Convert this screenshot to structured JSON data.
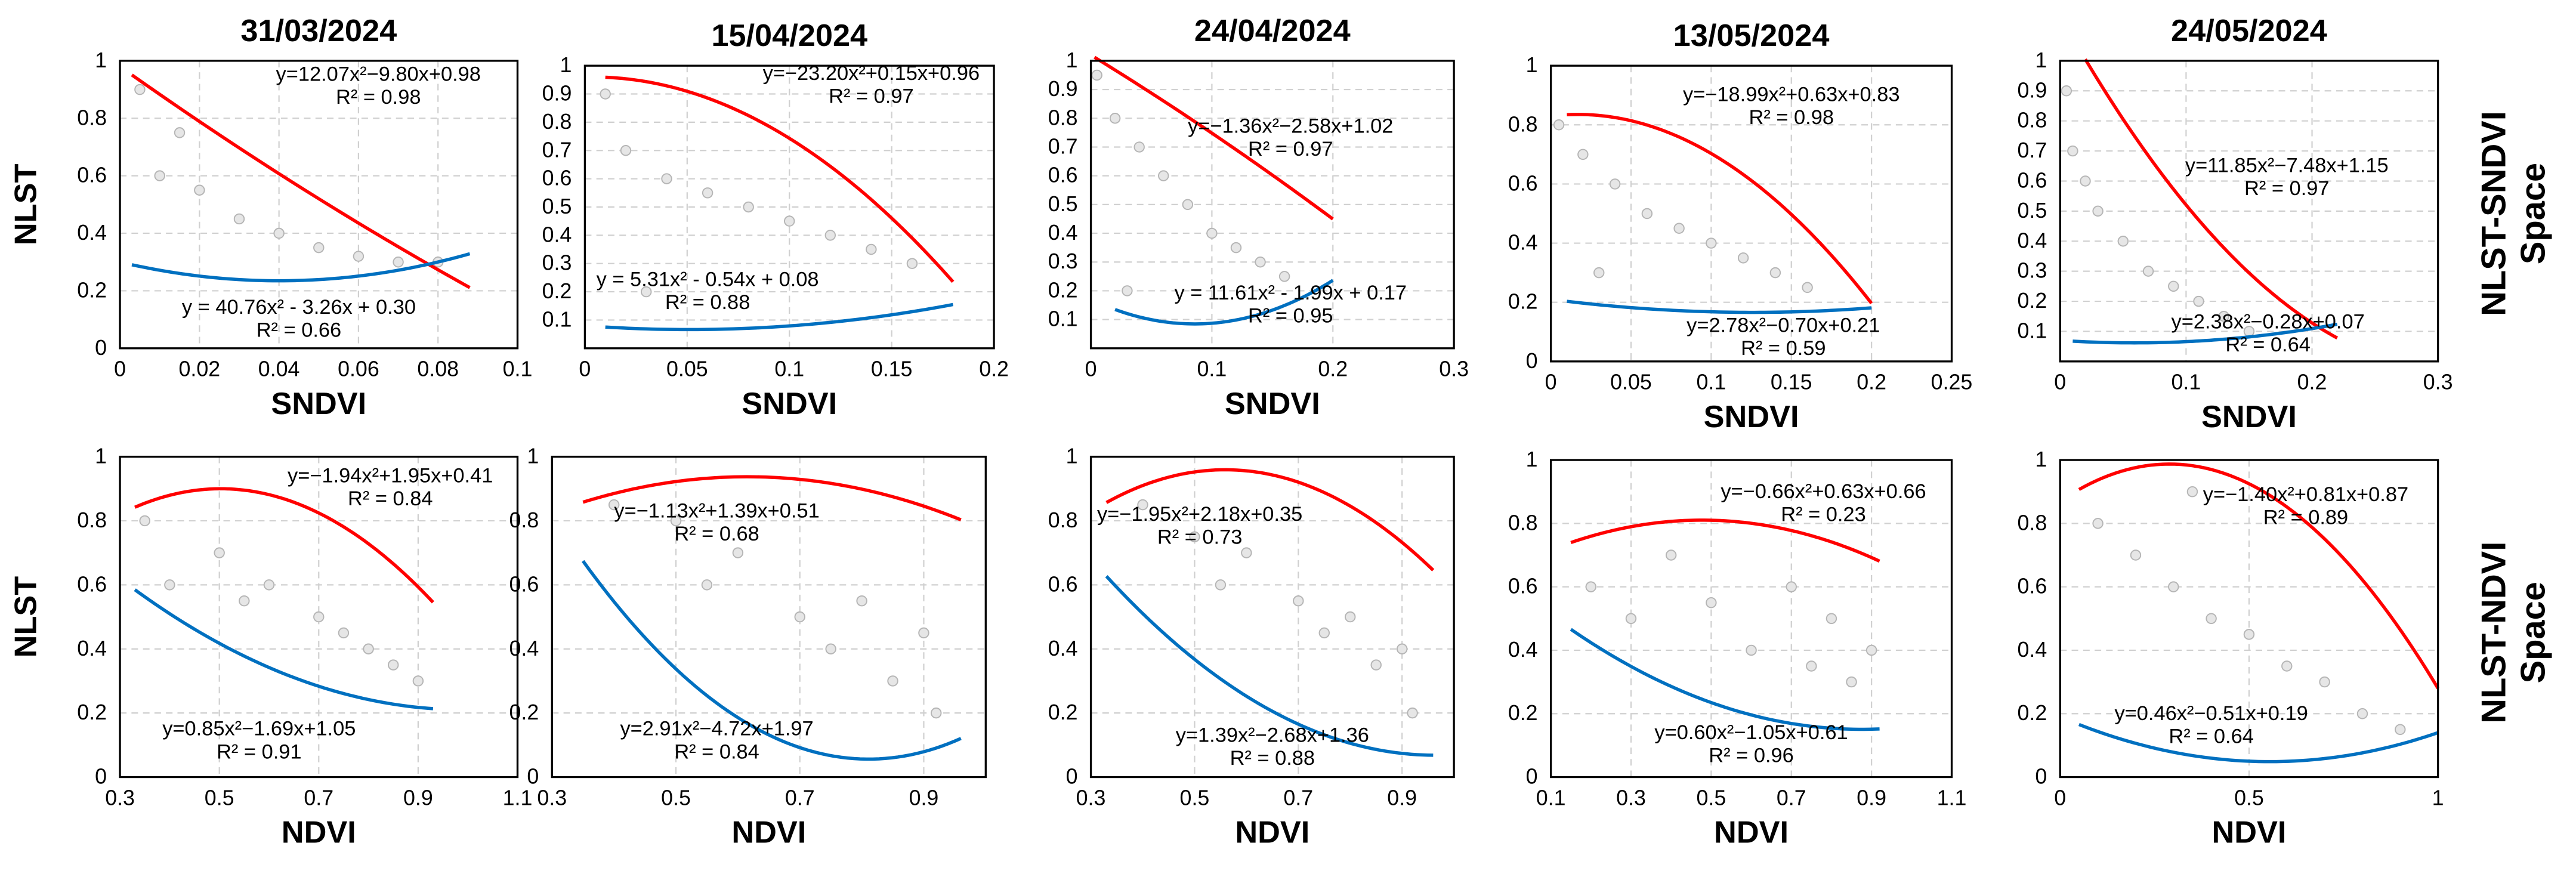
{
  "row_labels": [
    [
      "NLST-SNDVI",
      "Space"
    ],
    [
      "NLST-NDVI",
      "Space"
    ]
  ],
  "chart_data": [
    {
      "type": "scatter",
      "title": "31/03/2024",
      "xlabel": "SNDVI",
      "ylabel": "NLST",
      "xlim": [
        0,
        0.1
      ],
      "ylim": [
        0,
        1
      ],
      "xticks": [
        0,
        0.02,
        0.04,
        0.06,
        0.08,
        0.1
      ],
      "yticks": [
        0,
        0.2,
        0.4,
        0.6,
        0.8,
        1
      ],
      "grid": true,
      "x": [
        0.005,
        0.01,
        0.02,
        0.03,
        0.04,
        0.05,
        0.06,
        0.07,
        0.08,
        0.015
      ],
      "y": [
        0.9,
        0.6,
        0.55,
        0.45,
        0.4,
        0.35,
        0.32,
        0.3,
        0.3,
        0.75
      ],
      "fits": [
        {
          "color": "#ff0000",
          "coefficients": [
            12.07,
            -9.8,
            0.98
          ],
          "xrange": [
            0.003,
            0.088
          ],
          "equation": "y=12.07x²−9.80x+0.98",
          "r2": "R² = 0.98"
        },
        {
          "color": "#0070c0",
          "coefficients": [
            40.76,
            -3.26,
            0.3
          ],
          "xrange": [
            0.003,
            0.088
          ],
          "equation": "y = 40.76x² - 3.26x + 0.30",
          "r2": "R² = 0.66"
        }
      ]
    },
    {
      "type": "scatter",
      "title": "15/04/2024",
      "xlabel": "SNDVI",
      "xlim": [
        0,
        0.2
      ],
      "ylim": [
        0,
        1
      ],
      "xticks": [
        0,
        0.05,
        0.1,
        0.15,
        0.2
      ],
      "yticks": [
        0.1,
        0.2,
        0.3,
        0.4,
        0.5,
        0.6,
        0.7,
        0.8,
        0.9,
        1
      ],
      "grid": true,
      "x": [
        0.01,
        0.02,
        0.04,
        0.06,
        0.08,
        0.1,
        0.12,
        0.14,
        0.16,
        0.03
      ],
      "y": [
        0.9,
        0.7,
        0.6,
        0.55,
        0.5,
        0.45,
        0.4,
        0.35,
        0.3,
        0.2
      ],
      "fits": [
        {
          "color": "#ff0000",
          "coefficients": [
            -23.2,
            0.15,
            0.96
          ],
          "xrange": [
            0.01,
            0.18
          ],
          "equation": "y=−23.20x²+0.15x+0.96",
          "r2": "R² = 0.97"
        },
        {
          "color": "#0070c0",
          "coefficients": [
            5.31,
            -0.54,
            0.08
          ],
          "xrange": [
            0.01,
            0.18
          ],
          "equation": "y = 5.31x² - 0.54x + 0.08",
          "r2": "R² = 0.88"
        }
      ]
    },
    {
      "type": "scatter",
      "title": "24/04/2024",
      "xlabel": "SNDVI",
      "xlim": [
        0,
        0.3
      ],
      "ylim": [
        0,
        1
      ],
      "xticks": [
        0,
        0.1,
        0.2,
        0.3
      ],
      "yticks": [
        0.1,
        0.2,
        0.3,
        0.4,
        0.5,
        0.6,
        0.7,
        0.8,
        0.9,
        1
      ],
      "grid": true,
      "x": [
        0.005,
        0.02,
        0.04,
        0.06,
        0.08,
        0.1,
        0.12,
        0.14,
        0.16,
        0.03
      ],
      "y": [
        0.95,
        0.8,
        0.7,
        0.6,
        0.5,
        0.4,
        0.35,
        0.3,
        0.25,
        0.2
      ],
      "fits": [
        {
          "color": "#ff0000",
          "coefficients": [
            -1.36,
            -2.58,
            1.02
          ],
          "xrange": [
            0.003,
            0.2
          ],
          "equation": "y=−1.36x²−2.58x+1.02",
          "r2": "R² = 0.97"
        },
        {
          "color": "#0070c0",
          "coefficients": [
            11.61,
            -1.99,
            0.17
          ],
          "xrange": [
            0.02,
            0.2
          ],
          "equation": "y = 11.61x² - 1.99x + 0.17",
          "r2": "R² = 0.95"
        }
      ]
    },
    {
      "type": "scatter",
      "title": "13/05/2024",
      "xlabel": "SNDVI",
      "xlim": [
        0,
        0.25
      ],
      "ylim": [
        0,
        1
      ],
      "xticks": [
        0,
        0.05,
        0.1,
        0.15,
        0.2,
        0.25
      ],
      "yticks": [
        0,
        0.2,
        0.4,
        0.6,
        0.8,
        1
      ],
      "grid": true,
      "x": [
        0.005,
        0.02,
        0.04,
        0.06,
        0.08,
        0.1,
        0.12,
        0.14,
        0.16,
        0.03
      ],
      "y": [
        0.8,
        0.7,
        0.6,
        0.5,
        0.45,
        0.4,
        0.35,
        0.3,
        0.25,
        0.3
      ],
      "fits": [
        {
          "color": "#ff0000",
          "coefficients": [
            -18.99,
            0.63,
            0.83
          ],
          "xrange": [
            0.01,
            0.2
          ],
          "equation": "y=−18.99x²+0.63x+0.83",
          "r2": "R² = 0.98"
        },
        {
          "color": "#0070c0",
          "coefficients": [
            2.78,
            -0.7,
            0.21
          ],
          "xrange": [
            0.01,
            0.2
          ],
          "equation": "y=2.78x²−0.70x+0.21",
          "r2": "R² = 0.59"
        }
      ]
    },
    {
      "type": "scatter",
      "title": "24/05/2024",
      "xlabel": "SNDVI",
      "xlim": [
        0,
        0.3
      ],
      "ylim": [
        0,
        1
      ],
      "xticks": [
        0,
        0.1,
        0.2,
        0.3
      ],
      "yticks": [
        0.1,
        0.2,
        0.3,
        0.4,
        0.5,
        0.6,
        0.7,
        0.8,
        0.9,
        1
      ],
      "grid": true,
      "x": [
        0.005,
        0.01,
        0.02,
        0.03,
        0.05,
        0.07,
        0.09,
        0.11,
        0.13,
        0.15
      ],
      "y": [
        0.9,
        0.7,
        0.6,
        0.5,
        0.4,
        0.3,
        0.25,
        0.2,
        0.15,
        0.1
      ],
      "fits": [
        {
          "color": "#ff0000",
          "coefficients": [
            11.85,
            -7.48,
            1.15
          ],
          "xrange": [
            0.02,
            0.22
          ],
          "equation": "y=11.85x²−7.48x+1.15",
          "r2": "R² = 0.97"
        },
        {
          "color": "#0070c0",
          "coefficients": [
            2.38,
            -0.28,
            0.07
          ],
          "xrange": [
            0.01,
            0.22
          ],
          "equation": "y=2.38x²−0.28x+0.07",
          "r2": "R² = 0.64"
        }
      ]
    },
    {
      "type": "scatter",
      "xlabel": "NDVI",
      "ylabel": "NLST",
      "xlim": [
        0.3,
        1.1
      ],
      "ylim": [
        0,
        1
      ],
      "xticks": [
        0.3,
        0.5,
        0.7,
        0.9,
        1.1
      ],
      "yticks": [
        0,
        0.2,
        0.4,
        0.6,
        0.8,
        1
      ],
      "grid": true,
      "x": [
        0.35,
        0.4,
        0.5,
        0.55,
        0.6,
        0.7,
        0.75,
        0.8,
        0.85,
        0.9
      ],
      "y": [
        0.8,
        0.6,
        0.7,
        0.55,
        0.6,
        0.5,
        0.45,
        0.4,
        0.35,
        0.3
      ],
      "fits": [
        {
          "color": "#ff0000",
          "coefficients": [
            -1.94,
            1.95,
            0.41
          ],
          "xrange": [
            0.33,
            0.93
          ],
          "equation": "y=−1.94x²+1.95x+0.41",
          "r2": "R² = 0.84"
        },
        {
          "color": "#0070c0",
          "coefficients": [
            0.85,
            -1.69,
            1.05
          ],
          "xrange": [
            0.33,
            0.93
          ],
          "equation": "y=0.85x²−1.69x+1.05",
          "r2": "R² = 0.91"
        }
      ]
    },
    {
      "type": "scatter",
      "xlabel": "NDVI",
      "xlim": [
        0.3,
        1
      ],
      "ylim": [
        0,
        1
      ],
      "xticks": [
        0.3,
        0.5,
        0.7,
        0.9
      ],
      "yticks": [
        0,
        0.2,
        0.4,
        0.6,
        0.8,
        1
      ],
      "grid": true,
      "x": [
        0.4,
        0.5,
        0.55,
        0.6,
        0.7,
        0.75,
        0.8,
        0.85,
        0.9,
        0.92
      ],
      "y": [
        0.85,
        0.8,
        0.6,
        0.7,
        0.5,
        0.4,
        0.55,
        0.3,
        0.45,
        0.2
      ],
      "fits": [
        {
          "color": "#ff0000",
          "coefficients": [
            -1.13,
            1.39,
            0.51
          ],
          "xrange": [
            0.35,
            0.96
          ],
          "equation": "y=−1.13x²+1.39x+0.51",
          "r2": "R² = 0.68"
        },
        {
          "color": "#0070c0",
          "coefficients": [
            2.91,
            -4.72,
            1.97
          ],
          "xrange": [
            0.35,
            0.96
          ],
          "equation": "y=2.91x²−4.72x+1.97",
          "r2": "R² = 0.84"
        }
      ]
    },
    {
      "type": "scatter",
      "xlabel": "NDVI",
      "xlim": [
        0.3,
        1
      ],
      "ylim": [
        0,
        1
      ],
      "xticks": [
        0.3,
        0.5,
        0.7,
        0.9
      ],
      "yticks": [
        0,
        0.2,
        0.4,
        0.6,
        0.8,
        1
      ],
      "grid": true,
      "x": [
        0.4,
        0.5,
        0.55,
        0.6,
        0.7,
        0.75,
        0.8,
        0.85,
        0.9,
        0.92
      ],
      "y": [
        0.85,
        0.75,
        0.6,
        0.7,
        0.55,
        0.45,
        0.5,
        0.35,
        0.4,
        0.2
      ],
      "fits": [
        {
          "color": "#ff0000",
          "coefficients": [
            -1.95,
            2.18,
            0.35
          ],
          "xrange": [
            0.33,
            0.96
          ],
          "equation": "y=−1.95x²+2.18x+0.35",
          "r2": "R² = 0.73"
        },
        {
          "color": "#0070c0",
          "coefficients": [
            1.39,
            -2.68,
            1.36
          ],
          "xrange": [
            0.33,
            0.96
          ],
          "equation": "y=1.39x²−2.68x+1.36",
          "r2": "R² = 0.88"
        }
      ]
    },
    {
      "type": "scatter",
      "xlabel": "NDVI",
      "xlim": [
        0.1,
        1.1
      ],
      "ylim": [
        0,
        1
      ],
      "xticks": [
        0.1,
        0.3,
        0.5,
        0.7,
        0.9,
        1.1
      ],
      "yticks": [
        0,
        0.2,
        0.4,
        0.6,
        0.8,
        1
      ],
      "grid": true,
      "x": [
        0.2,
        0.3,
        0.4,
        0.5,
        0.6,
        0.7,
        0.75,
        0.8,
        0.85,
        0.9
      ],
      "y": [
        0.6,
        0.5,
        0.7,
        0.55,
        0.4,
        0.6,
        0.35,
        0.5,
        0.3,
        0.4
      ],
      "fits": [
        {
          "color": "#ff0000",
          "coefficients": [
            -0.66,
            0.63,
            0.66
          ],
          "xrange": [
            0.15,
            0.92
          ],
          "equation": "y=−0.66x²+0.63x+0.66",
          "r2": "R² = 0.23"
        },
        {
          "color": "#0070c0",
          "coefficients": [
            0.6,
            -1.05,
            0.61
          ],
          "xrange": [
            0.15,
            0.92
          ],
          "equation": "y=0.60x²−1.05x+0.61",
          "r2": "R² = 0.96"
        }
      ]
    },
    {
      "type": "scatter",
      "xlabel": "NDVI",
      "xlim": [
        0,
        1
      ],
      "ylim": [
        0,
        1
      ],
      "xticks": [
        0,
        0.5,
        1
      ],
      "yticks": [
        0,
        0.2,
        0.4,
        0.6,
        0.8,
        1
      ],
      "grid": true,
      "x": [
        0.1,
        0.2,
        0.3,
        0.4,
        0.5,
        0.6,
        0.7,
        0.8,
        0.9,
        0.35
      ],
      "y": [
        0.8,
        0.7,
        0.6,
        0.5,
        0.45,
        0.35,
        0.3,
        0.2,
        0.15,
        0.9
      ],
      "fits": [
        {
          "color": "#ff0000",
          "coefficients": [
            -1.4,
            0.81,
            0.87
          ],
          "xrange": [
            0.05,
            1
          ],
          "equation": "y=−1.40x²+0.81x+0.87",
          "r2": "R² = 0.89"
        },
        {
          "color": "#0070c0",
          "coefficients": [
            0.46,
            -0.51,
            0.19
          ],
          "xrange": [
            0.05,
            1
          ],
          "equation": "y=0.46x²−0.51x+0.19",
          "r2": "R² = 0.64"
        }
      ]
    }
  ]
}
